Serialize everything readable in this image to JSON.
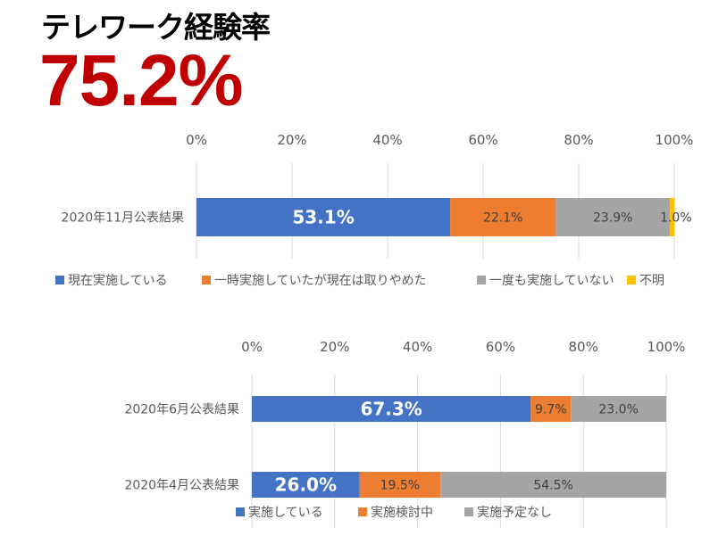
{
  "header": {
    "title": "テレワーク経験率",
    "headline_value": "75.2%"
  },
  "colors": {
    "blue": "#4472c4",
    "orange": "#ed7d31",
    "gray": "#a5a5a5",
    "yellow": "#ffc000",
    "headline": "#c00000"
  },
  "chart_data": [
    {
      "type": "bar",
      "orientation": "horizontal",
      "stacked": "100%",
      "xlim": [
        0,
        100
      ],
      "tick_labels": [
        "0%",
        "20%",
        "40%",
        "60%",
        "80%",
        "100%"
      ],
      "grid": true,
      "legend": "bottom",
      "categories": [
        "2020年11月公表結果"
      ],
      "series": [
        {
          "name": "現在実施している",
          "values": [
            53.1
          ],
          "labels": [
            "53.1%"
          ],
          "color": "#4472c4"
        },
        {
          "name": "一時実施していたが現在は取りやめた",
          "values": [
            22.1
          ],
          "labels": [
            "22.1%"
          ],
          "color": "#ed7d31"
        },
        {
          "name": "一度も実施していない",
          "values": [
            23.9
          ],
          "labels": [
            "23.9%"
          ],
          "color": "#a5a5a5"
        },
        {
          "name": "不明",
          "values": [
            1.0
          ],
          "labels": [
            "1.0%"
          ],
          "color": "#ffc000"
        }
      ]
    },
    {
      "type": "bar",
      "orientation": "horizontal",
      "stacked": "100%",
      "xlim": [
        0,
        100
      ],
      "tick_labels": [
        "0%",
        "20%",
        "40%",
        "60%",
        "80%",
        "100%"
      ],
      "grid": true,
      "legend": "bottom",
      "categories": [
        "2020年6月公表結果",
        "2020年4月公表結果"
      ],
      "series": [
        {
          "name": "実施している",
          "values": [
            67.3,
            26.0
          ],
          "labels": [
            "67.3%",
            "26.0%"
          ],
          "color": "#4472c4"
        },
        {
          "name": "実施検討中",
          "values": [
            9.7,
            19.5
          ],
          "labels": [
            "9.7%",
            "19.5%"
          ],
          "color": "#ed7d31"
        },
        {
          "name": "実施予定なし",
          "values": [
            23.0,
            54.5
          ],
          "labels": [
            "23.0%",
            "54.5%"
          ],
          "color": "#a5a5a5"
        }
      ]
    }
  ]
}
